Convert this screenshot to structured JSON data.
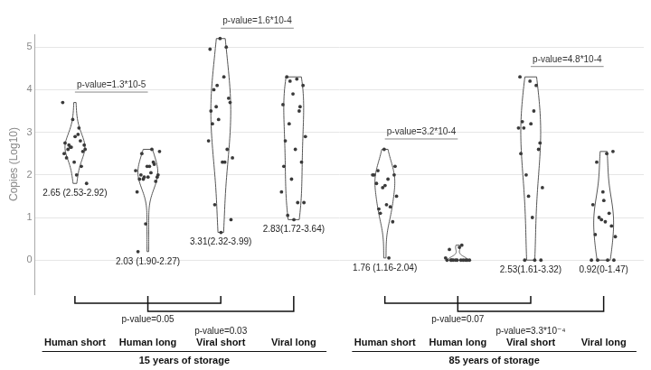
{
  "chart_data": {
    "type": "violin",
    "y_label": "Copies (Log10)",
    "ylim": [
      -0.8,
      5.3
    ],
    "yticks": [
      0,
      1,
      2,
      3,
      4,
      5
    ],
    "grid": true,
    "color": "#3a3a3a",
    "panels": [
      {
        "title": "15 years of storage",
        "categories": [
          "Human short",
          "Human long",
          "Viral short",
          "Viral long"
        ],
        "values": [
          [
            2.95,
            2.6,
            2.7,
            2.3,
            2.5,
            2.8,
            2.65,
            1.8,
            2.0,
            2.4,
            2.55,
            3.3,
            3.7,
            3.1,
            2.7,
            2.6,
            2.9,
            2.75,
            2.2,
            2.65
          ],
          [
            2.05,
            2.0,
            1.95,
            2.2,
            1.6,
            2.3,
            1.9,
            2.55,
            2.2,
            1.9,
            1.85,
            0.85,
            2.1,
            2.6,
            2.5,
            2.0,
            1.95,
            0.2,
            2.25,
            1.95
          ],
          [
            4.3,
            4.0,
            3.7,
            5.2,
            4.95,
            5.0,
            3.6,
            2.4,
            2.3,
            3.2,
            3.8,
            3.3,
            2.8,
            2.3,
            1.3,
            0.95,
            0.65,
            3.5,
            2.6,
            4.1
          ],
          [
            4.25,
            4.3,
            4.1,
            3.9,
            3.65,
            3.5,
            3.2,
            2.9,
            2.6,
            2.8,
            2.3,
            1.9,
            1.6,
            1.35,
            1.05,
            1.35,
            0.95,
            2.2,
            3.6,
            4.2
          ]
        ],
        "summary_labels": [
          "2.65 (2.53-2.92)",
          "2.03 (1.90-2.27)",
          "3.31(2.32-3.99)",
          "2.83(1.72-3.64)"
        ],
        "comparisons": [
          {
            "between": [
              "Human short",
              "Human long"
            ],
            "label": "p-value=1.3*10-5",
            "position": "top"
          },
          {
            "between": [
              "Viral short",
              "Viral long"
            ],
            "label": "p-value=1.6*10-4",
            "position": "top"
          },
          {
            "between": [
              "Human short",
              "Viral short"
            ],
            "label": "p-value=0.05",
            "position": "bottom"
          },
          {
            "between": [
              "Human long",
              "Viral long"
            ],
            "label": "p-value=0.03",
            "position": "bottom"
          }
        ]
      },
      {
        "title": "85 years of storage",
        "categories": [
          "Human short",
          "Human long",
          "Viral short",
          "Viral long"
        ],
        "values": [
          [
            1.9,
            2.1,
            2.0,
            2.6,
            2.0,
            1.25,
            1.1,
            1.5,
            1.3,
            1.8,
            0.9,
            1.7,
            2.0,
            0.05,
            1.2,
            2.2,
            1.75
          ],
          [
            0,
            0,
            0,
            0,
            0,
            0,
            0,
            0,
            0.3,
            0.25,
            0,
            0,
            0.05,
            0.35,
            0
          ],
          [
            3.5,
            3.1,
            2.75,
            4.2,
            4.3,
            4.1,
            2.0,
            1.7,
            1.0,
            3.25,
            2.6,
            1.5,
            3.1,
            0,
            0,
            0,
            3.2,
            2.5
          ],
          [
            2.5,
            2.3,
            2.55,
            1.6,
            1.3,
            1.1,
            1.0,
            0.55,
            0.9,
            0.6,
            0.8,
            0.95,
            0,
            0,
            0,
            0,
            1.4
          ]
        ],
        "summary_labels": [
          "1.76 (1.16-2.04)",
          null,
          "2.53(1.61-3.32)",
          "0.92(0-1.47)"
        ],
        "comparisons": [
          {
            "between": [
              "Human short",
              "Human long"
            ],
            "label": "p-value=3.2*10-4",
            "position": "top"
          },
          {
            "between": [
              "Viral short",
              "Viral long"
            ],
            "label": "p-value=4.8*10-4",
            "position": "top"
          },
          {
            "between": [
              "Human short",
              "Viral short"
            ],
            "label": "p-value=0.07",
            "position": "bottom"
          },
          {
            "between": [
              "Human long",
              "Viral long"
            ],
            "label": "p-value=3.3*10⁻⁴",
            "position": "bottom"
          }
        ]
      }
    ]
  }
}
